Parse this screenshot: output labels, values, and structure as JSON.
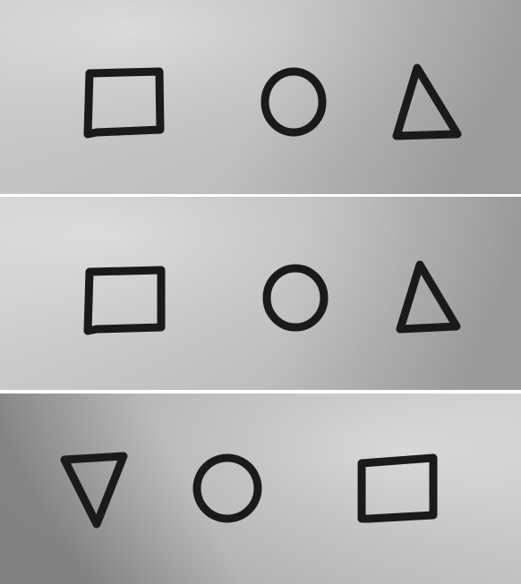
{
  "panels": [
    {
      "shapes": [
        "square",
        "circle",
        "triangle-up"
      ],
      "background": {
        "light": "#d9d9db",
        "dark": "#a9a9ab"
      }
    },
    {
      "shapes": [
        "square",
        "circle",
        "triangle-up"
      ],
      "background": {
        "light": "#dadadc",
        "dark": "#a6a6a8"
      }
    },
    {
      "shapes": [
        "triangle-down",
        "circle",
        "square"
      ],
      "background": {
        "light": "#dcdcde",
        "dark": "#929294"
      }
    }
  ],
  "ink_color": "#1a1a1a"
}
